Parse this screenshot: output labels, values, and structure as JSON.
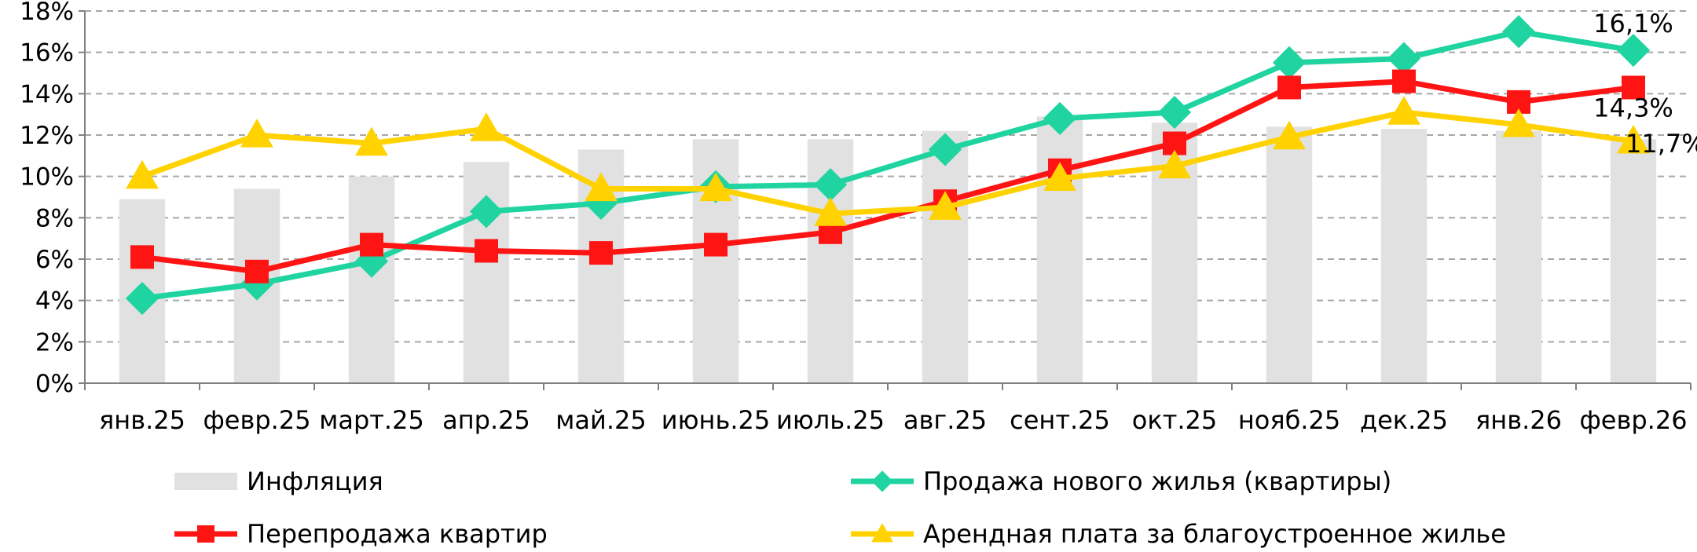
{
  "chart_data": {
    "type": "bar",
    "categories": [
      "янв.25",
      "февр.25",
      "март.25",
      "апр.25",
      "май.25",
      "июнь.25",
      "июль.25",
      "авг.25",
      "сент.25",
      "окт.25",
      "нояб.25",
      "дек.25",
      "янв.26",
      "февр.26"
    ],
    "ylim": [
      0,
      18
    ],
    "yticks": [
      "0%",
      "2%",
      "4%",
      "6%",
      "8%",
      "10%",
      "12%",
      "14%",
      "16%",
      "18%"
    ],
    "grid": true,
    "legend_position": "bottom",
    "series": [
      {
        "name": "Инфляция",
        "type": "bar",
        "color": "#e1e1e1",
        "values": [
          8.9,
          9.4,
          10.0,
          10.7,
          11.3,
          11.8,
          11.8,
          12.2,
          12.9,
          12.6,
          12.4,
          12.3,
          12.2,
          11.8
        ]
      },
      {
        "name": "Продажа нового жилья (квартиры)",
        "type": "line",
        "marker": "diamond",
        "color": "#1fd4a0",
        "values": [
          4.1,
          4.8,
          5.9,
          8.3,
          8.7,
          9.5,
          9.6,
          11.3,
          12.8,
          13.1,
          15.5,
          15.7,
          17.0,
          16.1
        ]
      },
      {
        "name": "Перепродажа квартир",
        "type": "line",
        "marker": "square",
        "color": "#ff1414",
        "values": [
          6.1,
          5.4,
          6.7,
          6.4,
          6.3,
          6.7,
          7.3,
          8.8,
          10.3,
          11.6,
          14.3,
          14.6,
          13.6,
          14.3
        ]
      },
      {
        "name": "Арендная плата за благоустроенное жилье",
        "type": "line",
        "marker": "triangle",
        "color": "#ffd200",
        "values": [
          10.0,
          12.0,
          11.6,
          12.3,
          9.4,
          9.4,
          8.2,
          8.5,
          9.9,
          10.5,
          11.9,
          13.1,
          12.5,
          11.7
        ]
      }
    ],
    "data_labels": [
      {
        "series": "Продажа нового жилья (квартиры)",
        "category": "февр.26",
        "text": "16,1%"
      },
      {
        "series": "Перепродажа квартир",
        "category": "февр.26",
        "text": "14,3%"
      },
      {
        "series": "Арендная плата за благоустроенное жилье",
        "category": "февр.26",
        "text": "11,7%"
      }
    ]
  }
}
